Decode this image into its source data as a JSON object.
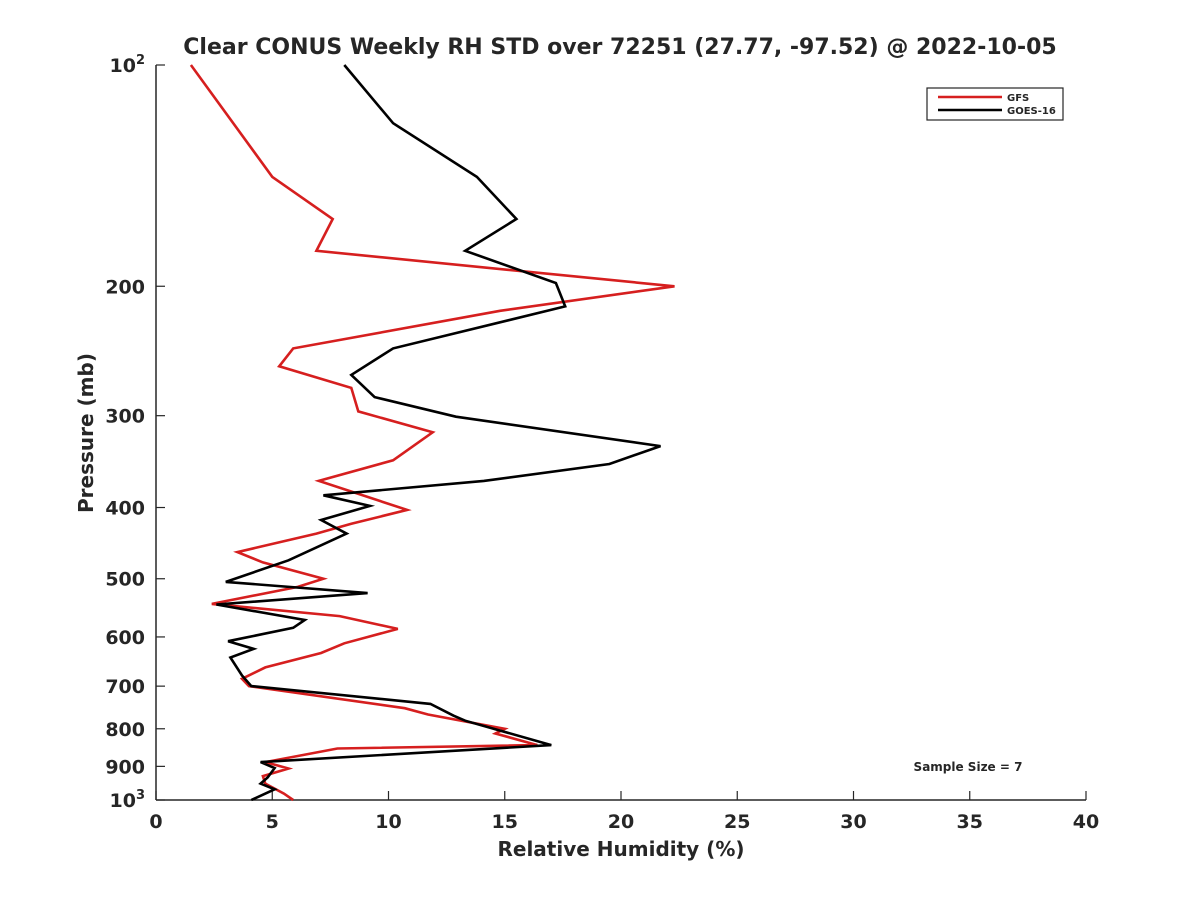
{
  "chart_data": {
    "type": "line",
    "title": "Clear CONUS Weekly RH STD over 72251 (27.77, -97.52) @ 2022-10-05",
    "xlabel": "Relative Humidity (%)",
    "ylabel": "Pressure (mb)",
    "xlim": [
      0,
      40
    ],
    "ylim": [
      100,
      1000
    ],
    "y_scale": "log",
    "y_reversed": true,
    "grid": false,
    "legend_position": "top-right",
    "xticks": [
      "0",
      "5",
      "10",
      "15",
      "20",
      "25",
      "30",
      "35",
      "40"
    ],
    "xtick_values": [
      0,
      5,
      10,
      15,
      20,
      25,
      30,
      35,
      40
    ],
    "yticks": [
      {
        "value": 100,
        "base": "10",
        "exp": "2"
      },
      {
        "value": 200,
        "base": "200",
        "exp": ""
      },
      {
        "value": 300,
        "base": "300",
        "exp": ""
      },
      {
        "value": 400,
        "base": "400",
        "exp": ""
      },
      {
        "value": 500,
        "base": "500",
        "exp": ""
      },
      {
        "value": 600,
        "base": "600",
        "exp": ""
      },
      {
        "value": 700,
        "base": "700",
        "exp": ""
      },
      {
        "value": 800,
        "base": "800",
        "exp": ""
      },
      {
        "value": 900,
        "base": "900",
        "exp": ""
      },
      {
        "value": 1000,
        "base": "10",
        "exp": "3"
      }
    ],
    "annotation": "Sample Size = 7",
    "series": [
      {
        "name": "GFS",
        "color": "#d61f1f",
        "points": [
          [
            1.5,
            100
          ],
          [
            5.0,
            142
          ],
          [
            7.6,
            162
          ],
          [
            6.9,
            179
          ],
          [
            22.3,
            200
          ],
          [
            14.8,
            216
          ],
          [
            5.9,
            243
          ],
          [
            5.3,
            257
          ],
          [
            8.4,
            275
          ],
          [
            8.7,
            296
          ],
          [
            11.9,
            316
          ],
          [
            10.2,
            345
          ],
          [
            7.0,
            368
          ],
          [
            10.8,
            403
          ],
          [
            8.4,
            421
          ],
          [
            6.9,
            434
          ],
          [
            3.5,
            460
          ],
          [
            4.6,
            475
          ],
          [
            7.2,
            500
          ],
          [
            6.1,
            513
          ],
          [
            2.4,
            541
          ],
          [
            7.9,
            562
          ],
          [
            10.4,
            585
          ],
          [
            8.1,
            612
          ],
          [
            7.1,
            631
          ],
          [
            4.7,
            660
          ],
          [
            3.7,
            684
          ],
          [
            4.0,
            700
          ],
          [
            10.7,
            750
          ],
          [
            11.7,
            765
          ],
          [
            15.0,
            800
          ],
          [
            14.6,
            812
          ],
          [
            16.4,
            842
          ],
          [
            7.8,
            851
          ],
          [
            4.7,
            888
          ],
          [
            5.7,
            906
          ],
          [
            4.6,
            928
          ],
          [
            4.7,
            950
          ],
          [
            5.5,
            980
          ],
          [
            5.9,
            1000
          ]
        ]
      },
      {
        "name": "GOES-16",
        "color": "#000000",
        "points": [
          [
            8.1,
            100
          ],
          [
            10.2,
            120
          ],
          [
            13.8,
            142
          ],
          [
            15.5,
            162
          ],
          [
            13.3,
            179
          ],
          [
            17.2,
            198
          ],
          [
            17.6,
            213
          ],
          [
            10.2,
            243
          ],
          [
            8.4,
            264
          ],
          [
            9.4,
            283
          ],
          [
            12.9,
            301
          ],
          [
            21.7,
            330
          ],
          [
            19.5,
            349
          ],
          [
            14.1,
            368
          ],
          [
            7.2,
            385
          ],
          [
            9.2,
            398
          ],
          [
            7.1,
            416
          ],
          [
            8.2,
            434
          ],
          [
            5.7,
            472
          ],
          [
            3.0,
            505
          ],
          [
            9.1,
            523
          ],
          [
            2.6,
            542
          ],
          [
            6.4,
            569
          ],
          [
            5.9,
            583
          ],
          [
            3.1,
            608
          ],
          [
            4.2,
            623
          ],
          [
            3.2,
            640
          ],
          [
            3.7,
            677
          ],
          [
            4.1,
            700
          ],
          [
            11.8,
            740
          ],
          [
            12.8,
            768
          ],
          [
            13.3,
            780
          ],
          [
            17.0,
            842
          ],
          [
            4.5,
            888
          ],
          [
            5.1,
            905
          ],
          [
            4.8,
            932
          ],
          [
            4.5,
            950
          ],
          [
            5.1,
            967
          ],
          [
            4.1,
            1000
          ]
        ]
      }
    ]
  }
}
